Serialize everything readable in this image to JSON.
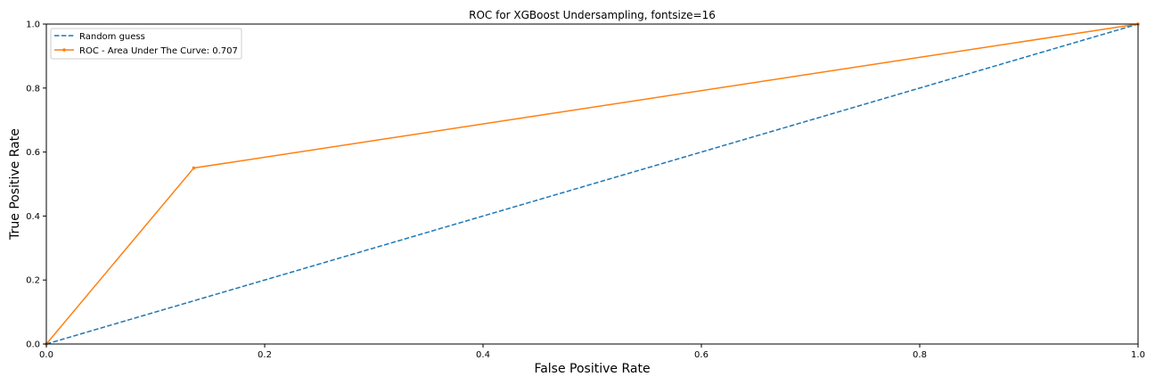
{
  "chart_data": {
    "type": "line",
    "title": "ROC for XGBoost Undersampling, fontsize=16",
    "xlabel": "False Positive Rate",
    "ylabel": "True Positive Rate",
    "xlim": [
      0,
      1
    ],
    "ylim": [
      0,
      1
    ],
    "xticks": [
      0.0,
      0.2,
      0.4,
      0.6,
      0.8,
      1.0
    ],
    "xtick_labels": [
      "0.0",
      "0.2",
      "0.4",
      "0.6",
      "0.8",
      "1.0"
    ],
    "yticks": [
      0.0,
      0.2,
      0.4,
      0.6,
      0.8,
      1.0
    ],
    "ytick_labels": [
      "0.0",
      "0.2",
      "0.4",
      "0.6",
      "0.8",
      "1.0"
    ],
    "grid": false,
    "legend_position": "top-left",
    "series": [
      {
        "name": "Random guess",
        "style": "dashed",
        "marker": "none",
        "color": "#1f77b4",
        "x": [
          0,
          1
        ],
        "y": [
          0,
          1
        ]
      },
      {
        "name": "ROC - Area Under The Curve: 0.707",
        "style": "solid",
        "marker": "dot",
        "color": "#ff7f0e",
        "x": [
          0,
          0.135,
          1
        ],
        "y": [
          0,
          0.55,
          1
        ]
      }
    ]
  }
}
